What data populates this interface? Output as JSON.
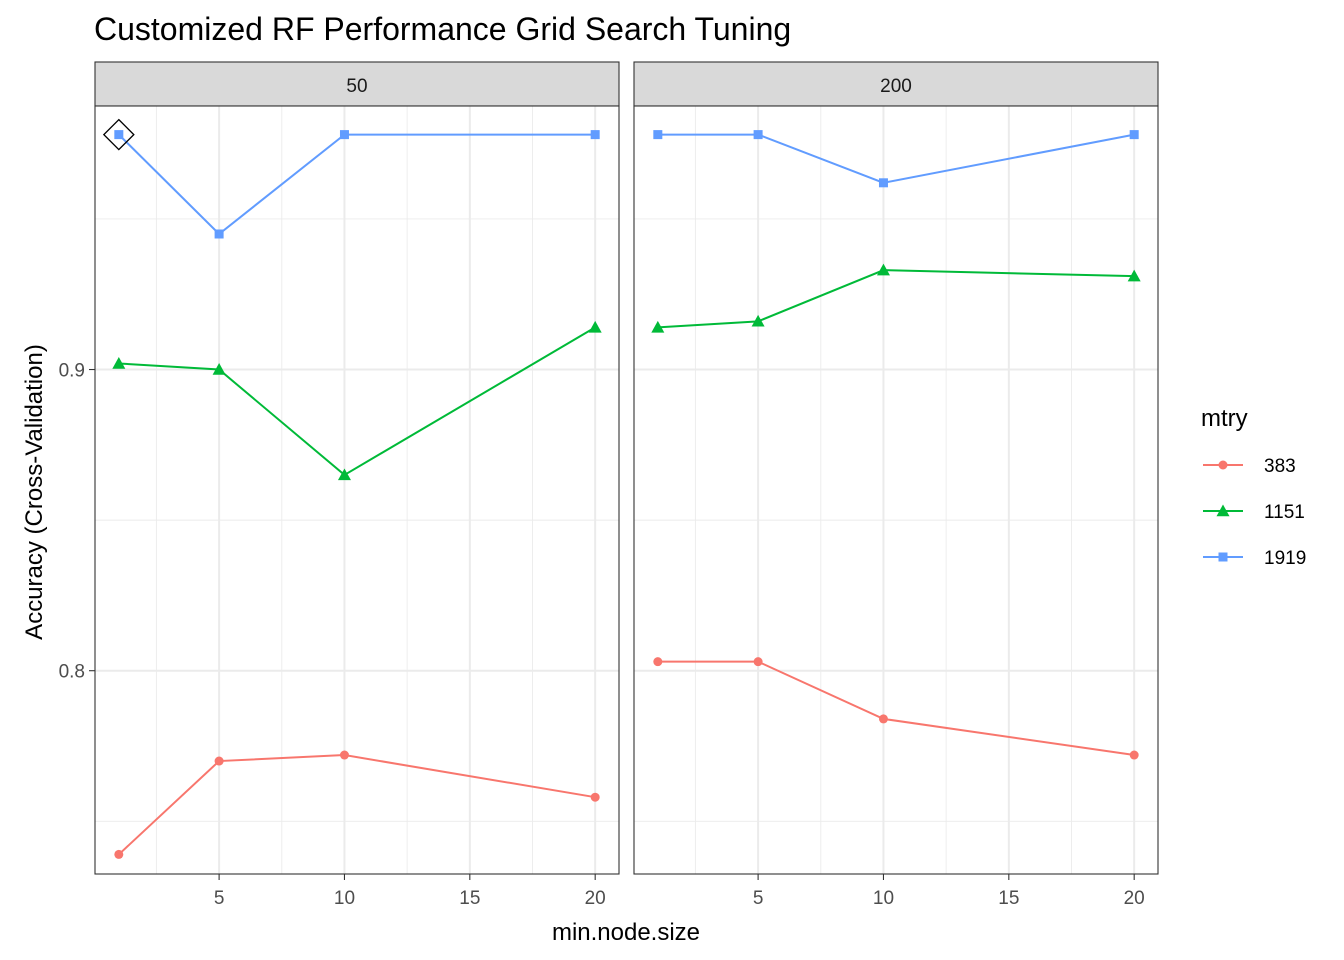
{
  "chart_data": {
    "type": "line",
    "title": "Customized RF Performance Grid Search Tuning",
    "xlabel": "min.node.size",
    "ylabel": "Accuracy (Cross-Validation)",
    "facets": [
      "50",
      "200"
    ],
    "x_ticks": [
      5,
      10,
      15,
      20
    ],
    "x_tick_labels": [
      "5",
      "10",
      "15",
      "20"
    ],
    "xlim": [
      0.05,
      20.95
    ],
    "y_ticks": [
      0.8,
      0.9
    ],
    "y_tick_labels": [
      "0.8",
      "0.9"
    ],
    "ylim": [
      0.7325,
      0.9875
    ],
    "grid": true,
    "legend": {
      "title": "mtry",
      "position": "right"
    },
    "series": [
      {
        "name": "383",
        "color": "#F8766D",
        "marker": "circle",
        "facets": {
          "50": {
            "x": [
              1,
              5,
              10,
              20
            ],
            "y": [
              0.739,
              0.77,
              0.772,
              0.758
            ]
          },
          "200": {
            "x": [
              1,
              5,
              10,
              20
            ],
            "y": [
              0.803,
              0.803,
              0.784,
              0.772
            ]
          }
        }
      },
      {
        "name": "1151",
        "color": "#00BA38",
        "marker": "triangle",
        "facets": {
          "50": {
            "x": [
              1,
              5,
              10,
              20
            ],
            "y": [
              0.902,
              0.9,
              0.865,
              0.914
            ]
          },
          "200": {
            "x": [
              1,
              5,
              10,
              20
            ],
            "y": [
              0.914,
              0.916,
              0.933,
              0.931
            ]
          }
        }
      },
      {
        "name": "1919",
        "color": "#619CFF",
        "marker": "square",
        "facets": {
          "50": {
            "x": [
              1,
              5,
              10,
              20
            ],
            "y": [
              0.978,
              0.945,
              0.978,
              0.978
            ]
          },
          "200": {
            "x": [
              1,
              5,
              10,
              20
            ],
            "y": [
              0.978,
              0.978,
              0.962,
              0.978
            ]
          }
        }
      }
    ],
    "highlight": {
      "facet": "50",
      "series": "1919",
      "x": 1,
      "y": 0.978,
      "marker": "diamond"
    }
  }
}
